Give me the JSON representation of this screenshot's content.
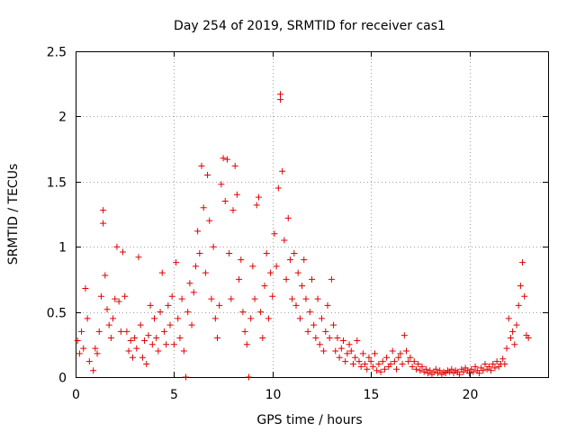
{
  "chart_data": {
    "type": "scatter",
    "title": "Day 254 of 2019, SRMTID for receiver cas1",
    "xlabel": "GPS time / hours",
    "ylabel": "SRMTID / TECUs",
    "xlim": [
      0,
      24
    ],
    "ylim": [
      0,
      2.5
    ],
    "xticks": [
      0,
      5,
      10,
      15,
      20
    ],
    "yticks": [
      0,
      0.5,
      1,
      1.5,
      2,
      2.5
    ],
    "ytick_labels": [
      "0",
      "0.5",
      "1",
      "1.5",
      "2",
      "2.5"
    ],
    "grid": true,
    "marker": "plus",
    "color": "#e00000",
    "series": [
      {
        "name": "SRMTID",
        "points": [
          [
            0.1,
            0.28
          ],
          [
            0.2,
            0.18
          ],
          [
            0.3,
            0.35
          ],
          [
            0.4,
            0.22
          ],
          [
            0.5,
            0.68
          ],
          [
            0.6,
            0.45
          ],
          [
            0.7,
            0.12
          ],
          [
            0.9,
            0.05
          ],
          [
            1.0,
            0.22
          ],
          [
            1.1,
            0.18
          ],
          [
            1.2,
            0.35
          ],
          [
            1.3,
            0.62
          ],
          [
            1.4,
            1.28
          ],
          [
            1.4,
            1.18
          ],
          [
            1.5,
            0.78
          ],
          [
            1.6,
            0.52
          ],
          [
            1.7,
            0.4
          ],
          [
            1.8,
            0.3
          ],
          [
            1.9,
            0.45
          ],
          [
            2.0,
            0.6
          ],
          [
            2.1,
            1.0
          ],
          [
            2.2,
            0.58
          ],
          [
            2.3,
            0.35
          ],
          [
            2.4,
            0.96
          ],
          [
            2.5,
            0.62
          ],
          [
            2.6,
            0.35
          ],
          [
            2.7,
            0.2
          ],
          [
            2.8,
            0.28
          ],
          [
            2.9,
            0.15
          ],
          [
            3.0,
            0.3
          ],
          [
            3.1,
            0.22
          ],
          [
            3.2,
            0.92
          ],
          [
            3.3,
            0.4
          ],
          [
            3.4,
            0.15
          ],
          [
            3.5,
            0.28
          ],
          [
            3.6,
            0.1
          ],
          [
            3.7,
            0.32
          ],
          [
            3.8,
            0.55
          ],
          [
            3.9,
            0.25
          ],
          [
            4.0,
            0.45
          ],
          [
            4.1,
            0.3
          ],
          [
            4.2,
            0.2
          ],
          [
            4.3,
            0.5
          ],
          [
            4.4,
            0.8
          ],
          [
            4.5,
            0.35
          ],
          [
            4.6,
            0.25
          ],
          [
            4.7,
            0.55
          ],
          [
            4.8,
            0.4
          ],
          [
            4.9,
            0.62
          ],
          [
            5.0,
            0.25
          ],
          [
            5.1,
            0.88
          ],
          [
            5.2,
            0.45
          ],
          [
            5.3,
            0.3
          ],
          [
            5.4,
            0.6
          ],
          [
            5.5,
            0.2
          ],
          [
            5.6,
            0.0
          ],
          [
            5.7,
            0.5
          ],
          [
            5.8,
            0.72
          ],
          [
            5.9,
            0.4
          ],
          [
            6.0,
            0.65
          ],
          [
            6.1,
            0.85
          ],
          [
            6.2,
            1.12
          ],
          [
            6.3,
            0.95
          ],
          [
            6.4,
            1.62
          ],
          [
            6.5,
            1.3
          ],
          [
            6.6,
            0.8
          ],
          [
            6.7,
            1.55
          ],
          [
            6.8,
            1.2
          ],
          [
            6.9,
            0.6
          ],
          [
            7.0,
            1.0
          ],
          [
            7.1,
            0.45
          ],
          [
            7.2,
            0.3
          ],
          [
            7.3,
            0.55
          ],
          [
            7.4,
            1.48
          ],
          [
            7.5,
            1.68
          ],
          [
            7.6,
            1.35
          ],
          [
            7.7,
            1.67
          ],
          [
            7.8,
            0.95
          ],
          [
            7.9,
            0.6
          ],
          [
            8.0,
            1.28
          ],
          [
            8.1,
            1.62
          ],
          [
            8.2,
            1.4
          ],
          [
            8.3,
            0.75
          ],
          [
            8.4,
            0.9
          ],
          [
            8.5,
            0.5
          ],
          [
            8.6,
            0.35
          ],
          [
            8.7,
            0.25
          ],
          [
            8.8,
            0.0
          ],
          [
            8.9,
            0.45
          ],
          [
            9.0,
            0.85
          ],
          [
            9.1,
            0.6
          ],
          [
            9.2,
            1.32
          ],
          [
            9.3,
            1.38
          ],
          [
            9.4,
            0.5
          ],
          [
            9.5,
            0.3
          ],
          [
            9.6,
            0.7
          ],
          [
            9.7,
            0.95
          ],
          [
            9.8,
            0.45
          ],
          [
            9.9,
            0.8
          ],
          [
            10.0,
            0.62
          ],
          [
            10.1,
            1.1
          ],
          [
            10.2,
            0.85
          ],
          [
            10.3,
            1.45
          ],
          [
            10.4,
            2.17
          ],
          [
            10.4,
            2.13
          ],
          [
            10.5,
            1.58
          ],
          [
            10.6,
            1.05
          ],
          [
            10.7,
            0.75
          ],
          [
            10.8,
            1.22
          ],
          [
            10.9,
            0.9
          ],
          [
            11.0,
            0.6
          ],
          [
            11.1,
            0.95
          ],
          [
            11.2,
            0.55
          ],
          [
            11.3,
            0.8
          ],
          [
            11.4,
            0.45
          ],
          [
            11.5,
            0.7
          ],
          [
            11.6,
            0.9
          ],
          [
            11.7,
            0.6
          ],
          [
            11.8,
            0.35
          ],
          [
            11.9,
            0.5
          ],
          [
            12.0,
            0.75
          ],
          [
            12.1,
            0.4
          ],
          [
            12.2,
            0.3
          ],
          [
            12.3,
            0.6
          ],
          [
            12.4,
            0.25
          ],
          [
            12.5,
            0.45
          ],
          [
            12.6,
            0.2
          ],
          [
            12.7,
            0.35
          ],
          [
            12.8,
            0.55
          ],
          [
            12.9,
            0.3
          ],
          [
            13.0,
            0.75
          ],
          [
            13.1,
            0.4
          ],
          [
            13.2,
            0.2
          ],
          [
            13.3,
            0.3
          ],
          [
            13.4,
            0.15
          ],
          [
            13.5,
            0.22
          ],
          [
            13.6,
            0.28
          ],
          [
            13.7,
            0.12
          ],
          [
            13.8,
            0.18
          ],
          [
            13.9,
            0.25
          ],
          [
            14.0,
            0.2
          ],
          [
            14.1,
            0.1
          ],
          [
            14.2,
            0.15
          ],
          [
            14.3,
            0.28
          ],
          [
            14.4,
            0.12
          ],
          [
            14.5,
            0.08
          ],
          [
            14.6,
            0.18
          ],
          [
            14.7,
            0.1
          ],
          [
            14.8,
            0.06
          ],
          [
            14.9,
            0.15
          ],
          [
            15.0,
            0.12
          ],
          [
            15.1,
            0.08
          ],
          [
            15.2,
            0.18
          ],
          [
            15.3,
            0.05
          ],
          [
            15.4,
            0.1
          ],
          [
            15.5,
            0.04
          ],
          [
            15.6,
            0.12
          ],
          [
            15.7,
            0.06
          ],
          [
            15.8,
            0.15
          ],
          [
            15.9,
            0.08
          ],
          [
            16.0,
            0.1
          ],
          [
            16.1,
            0.2
          ],
          [
            16.2,
            0.12
          ],
          [
            16.3,
            0.06
          ],
          [
            16.4,
            0.15
          ],
          [
            16.5,
            0.18
          ],
          [
            16.6,
            0.1
          ],
          [
            16.7,
            0.32
          ],
          [
            16.8,
            0.2
          ],
          [
            16.9,
            0.12
          ],
          [
            17.0,
            0.15
          ],
          [
            17.1,
            0.08
          ],
          [
            17.2,
            0.12
          ],
          [
            17.3,
            0.06
          ],
          [
            17.4,
            0.1
          ],
          [
            17.5,
            0.05
          ],
          [
            17.6,
            0.08
          ],
          [
            17.7,
            0.04
          ],
          [
            17.8,
            0.06
          ],
          [
            17.9,
            0.03
          ],
          [
            18.0,
            0.05
          ],
          [
            18.1,
            0.02
          ],
          [
            18.2,
            0.04
          ],
          [
            18.3,
            0.06
          ],
          [
            18.4,
            0.03
          ],
          [
            18.5,
            0.05
          ],
          [
            18.6,
            0.02
          ],
          [
            18.7,
            0.04
          ],
          [
            18.8,
            0.03
          ],
          [
            18.9,
            0.05
          ],
          [
            19.0,
            0.04
          ],
          [
            19.1,
            0.06
          ],
          [
            19.2,
            0.03
          ],
          [
            19.3,
            0.05
          ],
          [
            19.4,
            0.04
          ],
          [
            19.5,
            0.02
          ],
          [
            19.6,
            0.06
          ],
          [
            19.7,
            0.04
          ],
          [
            19.8,
            0.07
          ],
          [
            19.9,
            0.05
          ],
          [
            20.0,
            0.03
          ],
          [
            20.1,
            0.06
          ],
          [
            20.2,
            0.04
          ],
          [
            20.3,
            0.08
          ],
          [
            20.4,
            0.05
          ],
          [
            20.5,
            0.03
          ],
          [
            20.6,
            0.07
          ],
          [
            20.7,
            0.05
          ],
          [
            20.8,
            0.1
          ],
          [
            20.9,
            0.06
          ],
          [
            21.0,
            0.08
          ],
          [
            21.1,
            0.05
          ],
          [
            21.2,
            0.1
          ],
          [
            21.3,
            0.07
          ],
          [
            21.4,
            0.12
          ],
          [
            21.5,
            0.08
          ],
          [
            21.6,
            0.1
          ],
          [
            21.7,
            0.14
          ],
          [
            21.8,
            0.1
          ],
          [
            21.9,
            0.22
          ],
          [
            22.0,
            0.45
          ],
          [
            22.1,
            0.3
          ],
          [
            22.2,
            0.35
          ],
          [
            22.3,
            0.25
          ],
          [
            22.4,
            0.4
          ],
          [
            22.5,
            0.55
          ],
          [
            22.6,
            0.7
          ],
          [
            22.7,
            0.88
          ],
          [
            22.8,
            0.62
          ],
          [
            22.9,
            0.32
          ],
          [
            23.0,
            0.3
          ]
        ]
      }
    ]
  }
}
